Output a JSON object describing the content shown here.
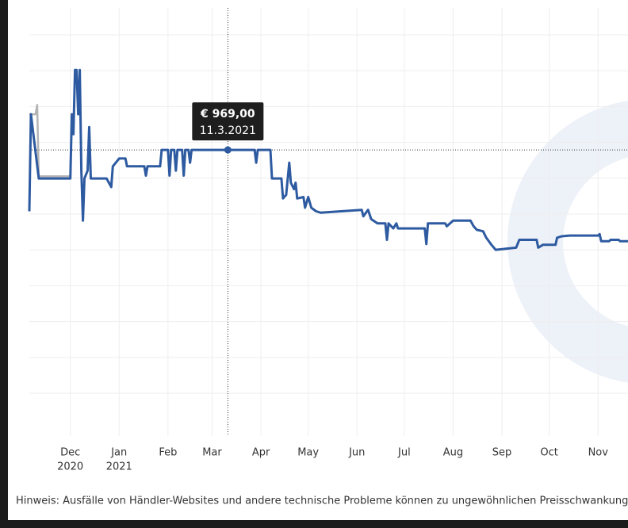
{
  "chart_data": {
    "type": "line",
    "xlim": [
      "2020-11-05",
      "2021-11-20"
    ],
    "ylim": [
      568,
      1168
    ],
    "xticks": [
      {
        "value": "2020-12-01",
        "label": "Dec"
      },
      {
        "value": "2021-01-01",
        "label": "Jan"
      },
      {
        "value": "2021-02-01",
        "label": "Feb"
      },
      {
        "value": "2021-03-01",
        "label": "Mar"
      },
      {
        "value": "2021-04-01",
        "label": "Apr"
      },
      {
        "value": "2021-05-01",
        "label": "May"
      },
      {
        "value": "2021-06-01",
        "label": "Jun"
      },
      {
        "value": "2021-07-01",
        "label": "Jul"
      },
      {
        "value": "2021-08-01",
        "label": "Aug"
      },
      {
        "value": "2021-09-01",
        "label": "Sep"
      },
      {
        "value": "2021-10-01",
        "label": "Oct"
      },
      {
        "value": "2021-11-01",
        "label": "Nov"
      }
    ],
    "year_labels": [
      {
        "value": "2020-12-01",
        "label": "2020"
      },
      {
        "value": "2021-01-01",
        "label": "2021"
      }
    ],
    "grid": true,
    "series": [
      {
        "color": "#b4b4b4",
        "x": [
          "2020-11-05",
          "2020-11-09",
          "2020-11-10",
          "2020-11-11",
          "2020-12-01",
          "2020-12-02"
        ],
        "values": [
          1019,
          1019,
          1032,
          932,
          932,
          1019
        ]
      },
      {
        "color": "#2d5aa0",
        "x": [
          "2020-11-05",
          "2020-11-06",
          "2020-11-11",
          "2020-12-01",
          "2020-12-02",
          "2020-12-03",
          "2020-12-04",
          "2020-12-05",
          "2020-12-06",
          "2020-12-07",
          "2020-12-08",
          "2020-12-09",
          "2020-12-10",
          "2020-12-12",
          "2020-12-13",
          "2020-12-14",
          "2020-12-24",
          "2020-12-27",
          "2020-12-28",
          "2021-01-01",
          "2021-01-05",
          "2021-01-06",
          "2021-01-17",
          "2021-01-18",
          "2021-01-19",
          "2021-01-27",
          "2021-01-28",
          "2021-02-01",
          "2021-02-02",
          "2021-02-03",
          "2021-02-05",
          "2021-02-06",
          "2021-02-07",
          "2021-02-10",
          "2021-02-11",
          "2021-02-12",
          "2021-02-14",
          "2021-02-15",
          "2021-02-16",
          "2021-03-11",
          "2021-03-28",
          "2021-03-29",
          "2021-03-30",
          "2021-04-07",
          "2021-04-08",
          "2021-04-14",
          "2021-04-15",
          "2021-04-17",
          "2021-04-19",
          "2021-04-20",
          "2021-04-22",
          "2021-04-23",
          "2021-04-24",
          "2021-04-28",
          "2021-04-29",
          "2021-05-01",
          "2021-05-03",
          "2021-05-06",
          "2021-05-09",
          "2021-06-04",
          "2021-06-05",
          "2021-06-08",
          "2021-06-10",
          "2021-06-14",
          "2021-06-19",
          "2021-06-20",
          "2021-06-21",
          "2021-06-24",
          "2021-06-26",
          "2021-06-27",
          "2021-07-14",
          "2021-07-15",
          "2021-07-16",
          "2021-07-27",
          "2021-07-28",
          "2021-08-01",
          "2021-08-12",
          "2021-08-14",
          "2021-08-16",
          "2021-08-20",
          "2021-08-22",
          "2021-08-25",
          "2021-08-28",
          "2021-09-10",
          "2021-09-12",
          "2021-09-23",
          "2021-09-24",
          "2021-09-27",
          "2021-10-05",
          "2021-10-06",
          "2021-10-09",
          "2021-10-14",
          "2021-11-01",
          "2021-11-02",
          "2021-11-03",
          "2021-11-08",
          "2021-11-09",
          "2021-11-14",
          "2021-11-15",
          "2021-11-20"
        ],
        "values": [
          883,
          1019,
          929,
          929,
          1019,
          991,
          1081,
          1081,
          1019,
          1081,
          940,
          870,
          929,
          940,
          1001,
          929,
          929,
          917,
          946,
          957,
          957,
          946,
          946,
          933,
          946,
          946,
          969,
          969,
          933,
          969,
          969,
          940,
          969,
          969,
          933,
          969,
          969,
          951,
          969,
          969,
          969,
          951,
          969,
          969,
          929,
          929,
          901,
          906,
          951,
          923,
          914,
          923,
          901,
          903,
          888,
          903,
          888,
          883,
          881,
          885,
          876,
          885,
          872,
          866,
          866,
          843,
          866,
          859,
          866,
          859,
          859,
          837,
          866,
          866,
          862,
          870,
          870,
          862,
          857,
          855,
          846,
          837,
          829,
          832,
          843,
          843,
          832,
          836,
          836,
          846,
          848,
          849,
          849,
          851,
          841,
          841,
          843,
          843,
          841,
          841
        ]
      }
    ],
    "tooltip": {
      "x": "2021-03-11",
      "value": 969,
      "value_label": "€ 969,00",
      "x_label": "11.3.2021"
    },
    "note": "Hinweis: Ausfälle von Händler-Websites und andere technische Probleme können zu ungewöhnlichen Preisschwankungen"
  }
}
